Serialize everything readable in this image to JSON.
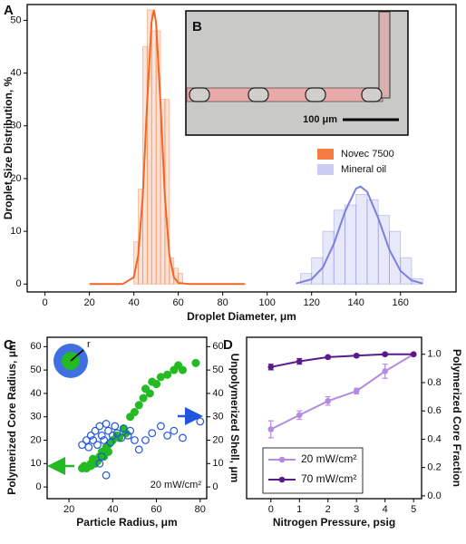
{
  "chart_data": [
    {
      "type": "histogram",
      "panel_label": "A",
      "x_label": "Droplet Diameter, μm",
      "y_label": "Droplet Size Distribution, %",
      "xlim": [
        -8,
        185
      ],
      "xticks": [
        0,
        20,
        40,
        60,
        80,
        100,
        120,
        140,
        160
      ],
      "ylim": [
        -1.5,
        53
      ],
      "yticks": [
        0,
        10,
        20,
        30,
        40,
        50
      ],
      "legend": "right",
      "series": [
        {
          "name": "Novec 7500",
          "color": "#f26522",
          "bins": [
            40,
            42,
            44,
            46,
            48,
            50,
            52,
            54,
            56,
            58,
            60,
            62
          ],
          "values": [
            8,
            18,
            45,
            52,
            48,
            48,
            35,
            35,
            5,
            3,
            2
          ],
          "fit_x": [
            20,
            35,
            40,
            42,
            44,
            46,
            48,
            49,
            50,
            52,
            54,
            56,
            58,
            60,
            65,
            90
          ],
          "fit_y": [
            0,
            0,
            1.3,
            5.5,
            16.5,
            34.4,
            49.7,
            52,
            49.7,
            34.4,
            16.5,
            5.5,
            1.3,
            0.2,
            0,
            0
          ]
        },
        {
          "name": "Mineral oil",
          "color": "#7b7fe0",
          "bins": [
            115,
            120,
            125,
            130,
            135,
            140,
            145,
            150,
            155,
            160,
            165,
            170
          ],
          "values": [
            2,
            5,
            10,
            14,
            15,
            17,
            16,
            13,
            10,
            5,
            1
          ],
          "fit_x": [
            113,
            120,
            125,
            130,
            135,
            140,
            142,
            145,
            150,
            155,
            160,
            165,
            170
          ],
          "fit_y": [
            0.1,
            0.9,
            3.1,
            7.6,
            13.7,
            18.1,
            18.5,
            17.5,
            12.5,
            6.5,
            2.5,
            0.7,
            0.1
          ]
        }
      ],
      "inset": {
        "label": "B",
        "scale_label": "100 μm"
      }
    },
    {
      "type": "scatter",
      "panel_label": "C",
      "x_label": "Particle Radius, μm",
      "y_label": "Polymerized Core Radius, μm",
      "y2_label": "Unpolymerized Shell, μm",
      "annotation": "20 mW/cm²",
      "inset_label": "r",
      "xlim": [
        10,
        83
      ],
      "xticks": [
        20,
        40,
        60,
        80
      ],
      "ylim": [
        -5,
        64
      ],
      "yticks": [
        0,
        10,
        20,
        30,
        40,
        50,
        60
      ],
      "y2lim": [
        -5,
        64
      ],
      "y2ticks": [
        0,
        10,
        20,
        30,
        40,
        50,
        60
      ],
      "series": [
        {
          "color": "#22bb22",
          "marker": "filled",
          "x": [
            26,
            27,
            28,
            30,
            30,
            31,
            32,
            33,
            34,
            35,
            36,
            37,
            38,
            38,
            40,
            42,
            43,
            45,
            46,
            48,
            50,
            52,
            54,
            55,
            57,
            58,
            60,
            62,
            65,
            68,
            70,
            72,
            78
          ],
          "values": [
            8,
            9,
            8,
            9,
            10,
            12,
            10,
            11,
            13,
            15,
            13,
            17,
            18,
            15,
            20,
            22,
            21,
            25,
            23,
            30,
            32,
            35,
            38,
            42,
            40,
            45,
            44,
            47,
            48,
            50,
            52,
            50,
            53
          ]
        },
        {
          "color": "#2255dd",
          "marker": "open",
          "axis": "y2",
          "x": [
            26,
            28,
            29,
            30,
            31,
            32,
            33,
            34,
            35,
            36,
            37,
            38,
            39,
            40,
            41,
            42,
            44,
            45,
            47,
            48,
            50,
            52,
            55,
            58,
            62,
            65,
            68,
            72,
            80,
            34,
            35,
            37
          ],
          "values": [
            18,
            20,
            17,
            22,
            20,
            24,
            18,
            26,
            22,
            20,
            27,
            24,
            19,
            22,
            26,
            23,
            21,
            25,
            22,
            24,
            20,
            16,
            20,
            23,
            26,
            22,
            24,
            21,
            28,
            10,
            13,
            5
          ]
        }
      ]
    },
    {
      "type": "line",
      "panel_label": "D",
      "x_label": "Nitrogen Pressure, psig",
      "y_label": "Polymerized Core Fraction",
      "x": [
        0,
        1,
        2,
        3,
        4,
        5
      ],
      "xlim": [
        -0.85,
        5.28
      ],
      "xticks": [
        0,
        1,
        2,
        3,
        4,
        5
      ],
      "y2lim": [
        -0.02,
        1.12
      ],
      "y2ticks": [
        {
          "value": 0,
          "label": "0.0"
        },
        {
          "value": 0.2,
          "label": "0.2"
        },
        {
          "value": 0.4,
          "label": "0.4"
        },
        {
          "value": 0.6,
          "label": "0.6"
        },
        {
          "value": 0.8,
          "label": "0.8"
        },
        {
          "value": 1,
          "label": "1.0"
        }
      ],
      "legend": "lower left",
      "series": [
        {
          "name": "20 mW/cm²",
          "color": "#b38be0",
          "axis": "y2",
          "values": [
            0.47,
            0.57,
            0.67,
            0.74,
            0.88,
            1.0
          ],
          "errors": [
            0.06,
            0.03,
            0.03,
            0.02,
            0.05,
            0.01
          ]
        },
        {
          "name": "70 mW/cm²",
          "color": "#5b1a8c",
          "axis": "y2",
          "values": [
            0.91,
            0.95,
            0.98,
            0.99,
            1.0,
            1.0
          ],
          "errors": [
            0.02,
            0.02,
            0.01,
            0.01,
            0.01,
            0.005
          ]
        }
      ]
    }
  ]
}
